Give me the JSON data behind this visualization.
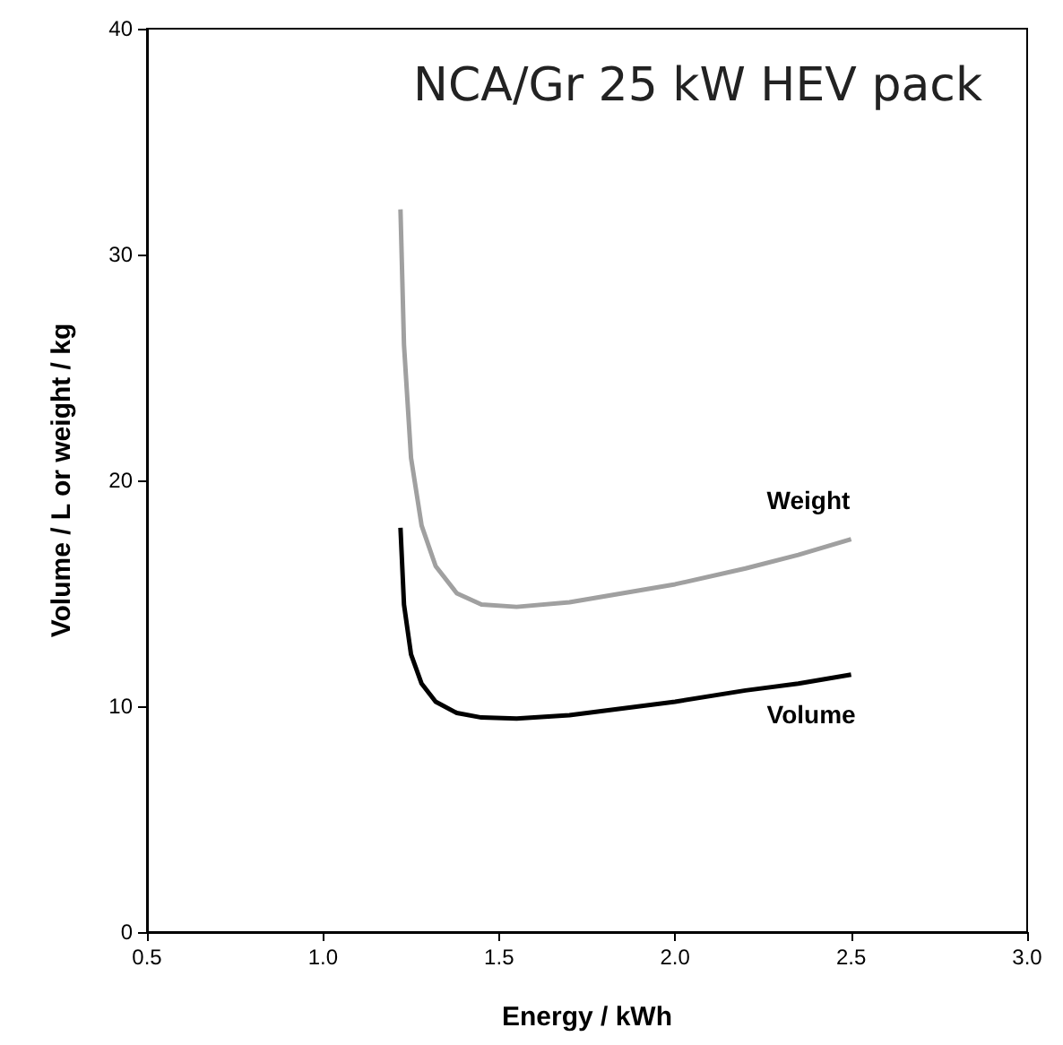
{
  "chart_data": {
    "type": "line",
    "title": "NCA/Gr 25 kW HEV pack",
    "xlabel": "Energy / kWh",
    "ylabel": "Volume / L or weight / kg",
    "xlim": [
      0.5,
      3.0
    ],
    "xticks": [
      0.5,
      {
        "value": 1,
        "label": "1.0"
      },
      1.5,
      {
        "value": 2,
        "label": "2.0"
      },
      2.5,
      {
        "value": 3,
        "label": "3.0"
      }
    ],
    "ylim": [
      0,
      40
    ],
    "yticks": [
      0,
      10,
      20,
      30,
      40
    ],
    "grid": false,
    "legend": false,
    "marker": "none",
    "line_style": "solid",
    "series": [
      {
        "name": "Weight",
        "color": "#a0a0a0",
        "x": [
          1.22,
          1.23,
          1.25,
          1.28,
          1.32,
          1.38,
          1.45,
          1.55,
          1.7,
          1.85,
          2.0,
          2.2,
          2.35,
          2.5
        ],
        "values": [
          32,
          26,
          21,
          18,
          16.2,
          15.0,
          14.5,
          14.4,
          14.6,
          15.0,
          15.4,
          16.1,
          16.7,
          17.4
        ]
      },
      {
        "name": "Volume",
        "color": "#000000",
        "x": [
          1.22,
          1.23,
          1.25,
          1.28,
          1.32,
          1.38,
          1.45,
          1.55,
          1.7,
          1.85,
          2.0,
          2.2,
          2.35,
          2.5
        ],
        "values": [
          17.9,
          14.5,
          12.3,
          11.0,
          10.2,
          9.7,
          9.5,
          9.45,
          9.6,
          9.9,
          10.2,
          10.7,
          11.0,
          11.4
        ]
      }
    ]
  }
}
